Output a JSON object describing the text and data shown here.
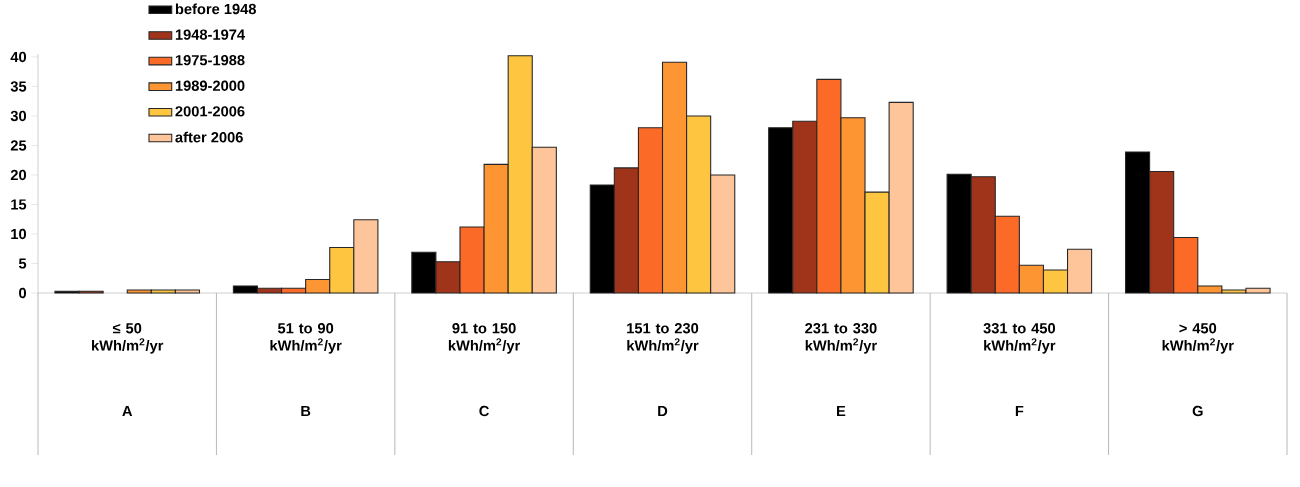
{
  "chart_data": {
    "type": "bar",
    "categories": [
      "≤ 50 kWh/m$^{2}$/yr",
      "51 to 90 kWh/m$^{2}$/yr",
      "91 to 150 kWh/m$^{2}$/yr",
      "151 to 230 kWh/m$^{2}$/yr",
      "231 to 330 kWh/m$^{2}$/yr",
      "331 to 450 kWh/m$^{2}$/yr",
      "> 450 kWh/m$^{2}$/yr"
    ],
    "series": [
      {
        "name": "before 1948",
        "color": "#000000",
        "values": [
          0.3,
          1.2,
          6.9,
          18.3,
          28.0,
          20.1,
          23.9
        ]
      },
      {
        "name": "1948-1974",
        "color": "#a0341a",
        "values": [
          0.3,
          0.8,
          5.3,
          21.2,
          29.1,
          19.7,
          20.6
        ]
      },
      {
        "name": "1975-1988",
        "color": "#fc6a28",
        "values": [
          null,
          0.8,
          11.2,
          28.0,
          36.2,
          13.0,
          9.4
        ]
      },
      {
        "name": "1989-2000",
        "color": "#fd9532",
        "values": [
          0.5,
          2.3,
          21.8,
          39.1,
          29.7,
          4.7,
          1.2
        ]
      },
      {
        "name": "2001-2006",
        "color": "#fdc540",
        "values": [
          0.5,
          7.7,
          40.2,
          30.0,
          17.1,
          3.9,
          0.5
        ]
      },
      {
        "name": "after 2006",
        "color": "#fec59a",
        "values": [
          0.5,
          12.4,
          24.7,
          20.0,
          32.3,
          7.4,
          0.8
        ]
      }
    ],
    "ylim": [
      0,
      40.5
    ],
    "yticks": [
      0,
      5,
      10,
      15,
      20,
      25,
      30,
      35,
      40
    ],
    "legend": "top left",
    "annotations": [
      "A",
      "B",
      "C",
      "D",
      "E",
      "F",
      "G"
    ]
  }
}
